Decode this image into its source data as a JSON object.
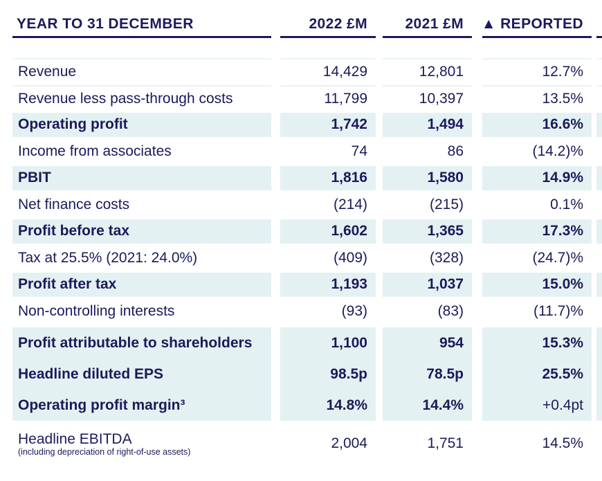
{
  "header": {
    "columns": [
      {
        "label": "YEAR TO 31 DECEMBER"
      },
      {
        "label": "2022 £M"
      },
      {
        "label": "2021 £M"
      },
      {
        "label": "▲ REPORTED"
      }
    ]
  },
  "rows": [
    {
      "label": "Revenue",
      "v2022": "14,429",
      "v2021": "12,801",
      "delta": "12.7%",
      "bold": false,
      "highlight": false
    },
    {
      "label": "Revenue less pass-through costs",
      "v2022": "11,799",
      "v2021": "10,397",
      "delta": "13.5%",
      "bold": false,
      "highlight": false
    },
    {
      "label": "Operating profit",
      "v2022": "1,742",
      "v2021": "1,494",
      "delta": "16.6%",
      "bold": true,
      "highlight": true
    },
    {
      "label": "Income from associates",
      "v2022": "74",
      "v2021": "86",
      "delta": "(14.2)%",
      "bold": false,
      "highlight": false
    },
    {
      "label": "PBIT",
      "v2022": "1,816",
      "v2021": "1,580",
      "delta": "14.9%",
      "bold": true,
      "highlight": true
    },
    {
      "label": "Net finance costs",
      "v2022": "(214)",
      "v2021": "(215)",
      "delta": "0.1%",
      "bold": false,
      "highlight": false
    },
    {
      "label": "Profit before tax",
      "v2022": "1,602",
      "v2021": "1,365",
      "delta": "17.3%",
      "bold": true,
      "highlight": true
    },
    {
      "label": "Tax at 25.5% (2021: 24.0%)",
      "v2022": "(409)",
      "v2021": "(328)",
      "delta": "(24.7)%",
      "bold": false,
      "highlight": false
    },
    {
      "label": "Profit after tax",
      "v2022": "1,193",
      "v2021": "1,037",
      "delta": "15.0%",
      "bold": true,
      "highlight": true
    },
    {
      "label": "Non-controlling interests",
      "v2022": "(93)",
      "v2021": "(83)",
      "delta": "(11.7)%",
      "bold": false,
      "highlight": false
    }
  ],
  "summary_block": {
    "rows": [
      {
        "label": "Profit attributable to shareholders",
        "v2022": "1,100",
        "v2021": "954",
        "delta": "15.3%",
        "delta_bold": true
      },
      {
        "label": "Headline diluted EPS",
        "v2022": "98.5p",
        "v2021": "78.5p",
        "delta": "25.5%",
        "delta_bold": true
      },
      {
        "label": "Operating profit margin³",
        "v2022": "14.8%",
        "v2021": "14.4%",
        "delta": "+0.4pt",
        "delta_bold": false
      }
    ]
  },
  "footer_row": {
    "label": "Headline EBITDA",
    "sublabel": "(including depreciation of right-of-use assets)",
    "v2022": "2,004",
    "v2021": "1,751",
    "delta": "14.5%"
  },
  "colors": {
    "navy": "#1b1a5a",
    "row_highlight": "#e4f1f3",
    "row_separator": "#e8f3f5",
    "background": "#ffffff"
  }
}
